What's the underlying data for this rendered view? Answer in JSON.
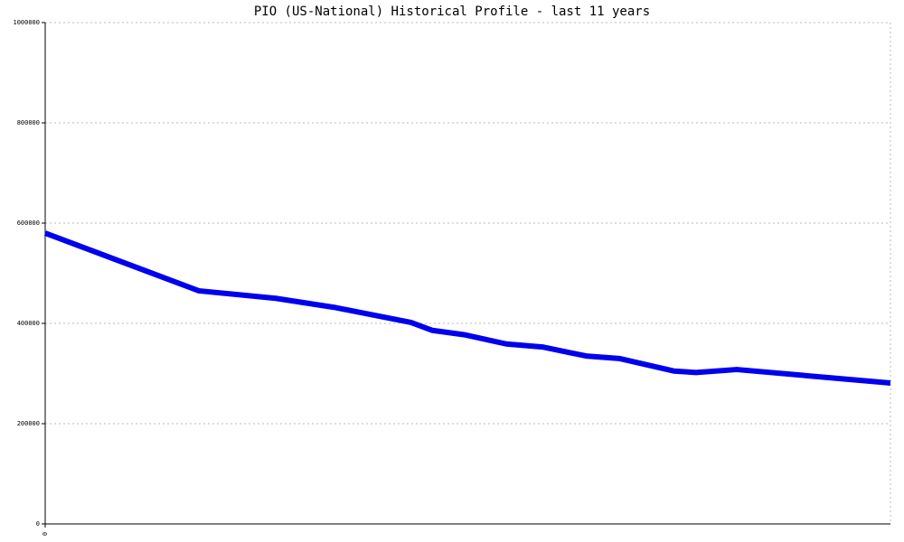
{
  "chart_data": {
    "type": "line",
    "title": "PIO (US-National) Historical Profile - last 11 years",
    "x": [
      0,
      2,
      3,
      3.76,
      4.76,
      5.04,
      5.47,
      6.0,
      6.47,
      7.04,
      7.47,
      8.18,
      8.47,
      9.0,
      11
    ],
    "series": [
      {
        "name": "PIO",
        "color": "#0000ee",
        "values": [
          580000,
          465000,
          450000,
          432000,
          402000,
          386000,
          377000,
          359000,
          353000,
          335000,
          330000,
          305000,
          302000,
          308000,
          281000
        ]
      }
    ],
    "xlim": [
      0,
      11
    ],
    "xticks": [
      0
    ],
    "ylim": [
      0,
      1000000
    ],
    "yticks": [
      0,
      200000,
      400000,
      600000,
      800000,
      1000000
    ],
    "grid": true
  }
}
